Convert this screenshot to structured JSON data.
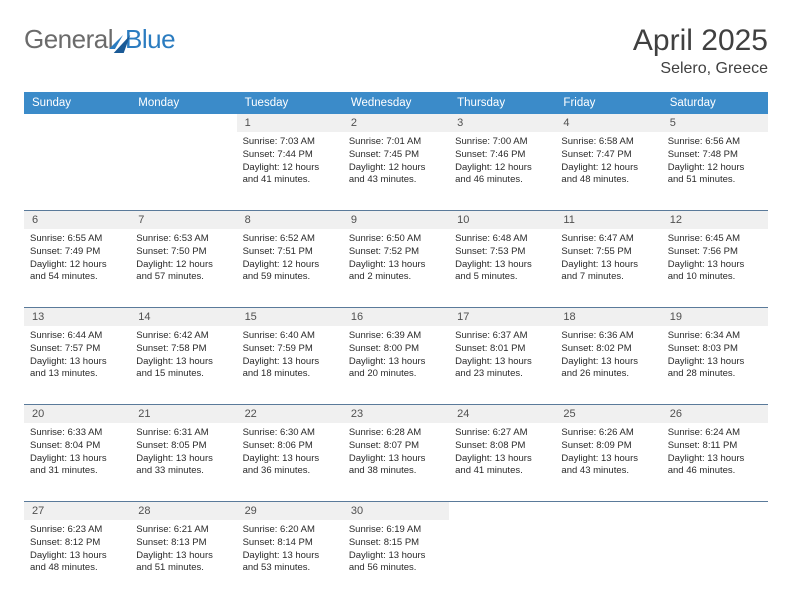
{
  "logo": {
    "part1": "General",
    "part2": "Blue"
  },
  "title": "April 2025",
  "location": "Selero, Greece",
  "dow": [
    "Sunday",
    "Monday",
    "Tuesday",
    "Wednesday",
    "Thursday",
    "Friday",
    "Saturday"
  ],
  "colors": {
    "header_bg": "#3b8bc9",
    "daynum_bg": "#f0f0f0",
    "border": "#5a7a9a",
    "text": "#2a2a2a",
    "title_text": "#404040"
  },
  "weeks": [
    {
      "nums": [
        "",
        "",
        "1",
        "2",
        "3",
        "4",
        "5"
      ],
      "cells": [
        null,
        null,
        {
          "sr": "Sunrise: 7:03 AM",
          "ss": "Sunset: 7:44 PM",
          "dl": "Daylight: 12 hours and 41 minutes."
        },
        {
          "sr": "Sunrise: 7:01 AM",
          "ss": "Sunset: 7:45 PM",
          "dl": "Daylight: 12 hours and 43 minutes."
        },
        {
          "sr": "Sunrise: 7:00 AM",
          "ss": "Sunset: 7:46 PM",
          "dl": "Daylight: 12 hours and 46 minutes."
        },
        {
          "sr": "Sunrise: 6:58 AM",
          "ss": "Sunset: 7:47 PM",
          "dl": "Daylight: 12 hours and 48 minutes."
        },
        {
          "sr": "Sunrise: 6:56 AM",
          "ss": "Sunset: 7:48 PM",
          "dl": "Daylight: 12 hours and 51 minutes."
        }
      ]
    },
    {
      "nums": [
        "6",
        "7",
        "8",
        "9",
        "10",
        "11",
        "12"
      ],
      "cells": [
        {
          "sr": "Sunrise: 6:55 AM",
          "ss": "Sunset: 7:49 PM",
          "dl": "Daylight: 12 hours and 54 minutes."
        },
        {
          "sr": "Sunrise: 6:53 AM",
          "ss": "Sunset: 7:50 PM",
          "dl": "Daylight: 12 hours and 57 minutes."
        },
        {
          "sr": "Sunrise: 6:52 AM",
          "ss": "Sunset: 7:51 PM",
          "dl": "Daylight: 12 hours and 59 minutes."
        },
        {
          "sr": "Sunrise: 6:50 AM",
          "ss": "Sunset: 7:52 PM",
          "dl": "Daylight: 13 hours and 2 minutes."
        },
        {
          "sr": "Sunrise: 6:48 AM",
          "ss": "Sunset: 7:53 PM",
          "dl": "Daylight: 13 hours and 5 minutes."
        },
        {
          "sr": "Sunrise: 6:47 AM",
          "ss": "Sunset: 7:55 PM",
          "dl": "Daylight: 13 hours and 7 minutes."
        },
        {
          "sr": "Sunrise: 6:45 AM",
          "ss": "Sunset: 7:56 PM",
          "dl": "Daylight: 13 hours and 10 minutes."
        }
      ]
    },
    {
      "nums": [
        "13",
        "14",
        "15",
        "16",
        "17",
        "18",
        "19"
      ],
      "cells": [
        {
          "sr": "Sunrise: 6:44 AM",
          "ss": "Sunset: 7:57 PM",
          "dl": "Daylight: 13 hours and 13 minutes."
        },
        {
          "sr": "Sunrise: 6:42 AM",
          "ss": "Sunset: 7:58 PM",
          "dl": "Daylight: 13 hours and 15 minutes."
        },
        {
          "sr": "Sunrise: 6:40 AM",
          "ss": "Sunset: 7:59 PM",
          "dl": "Daylight: 13 hours and 18 minutes."
        },
        {
          "sr": "Sunrise: 6:39 AM",
          "ss": "Sunset: 8:00 PM",
          "dl": "Daylight: 13 hours and 20 minutes."
        },
        {
          "sr": "Sunrise: 6:37 AM",
          "ss": "Sunset: 8:01 PM",
          "dl": "Daylight: 13 hours and 23 minutes."
        },
        {
          "sr": "Sunrise: 6:36 AM",
          "ss": "Sunset: 8:02 PM",
          "dl": "Daylight: 13 hours and 26 minutes."
        },
        {
          "sr": "Sunrise: 6:34 AM",
          "ss": "Sunset: 8:03 PM",
          "dl": "Daylight: 13 hours and 28 minutes."
        }
      ]
    },
    {
      "nums": [
        "20",
        "21",
        "22",
        "23",
        "24",
        "25",
        "26"
      ],
      "cells": [
        {
          "sr": "Sunrise: 6:33 AM",
          "ss": "Sunset: 8:04 PM",
          "dl": "Daylight: 13 hours and 31 minutes."
        },
        {
          "sr": "Sunrise: 6:31 AM",
          "ss": "Sunset: 8:05 PM",
          "dl": "Daylight: 13 hours and 33 minutes."
        },
        {
          "sr": "Sunrise: 6:30 AM",
          "ss": "Sunset: 8:06 PM",
          "dl": "Daylight: 13 hours and 36 minutes."
        },
        {
          "sr": "Sunrise: 6:28 AM",
          "ss": "Sunset: 8:07 PM",
          "dl": "Daylight: 13 hours and 38 minutes."
        },
        {
          "sr": "Sunrise: 6:27 AM",
          "ss": "Sunset: 8:08 PM",
          "dl": "Daylight: 13 hours and 41 minutes."
        },
        {
          "sr": "Sunrise: 6:26 AM",
          "ss": "Sunset: 8:09 PM",
          "dl": "Daylight: 13 hours and 43 minutes."
        },
        {
          "sr": "Sunrise: 6:24 AM",
          "ss": "Sunset: 8:11 PM",
          "dl": "Daylight: 13 hours and 46 minutes."
        }
      ]
    },
    {
      "nums": [
        "27",
        "28",
        "29",
        "30",
        "",
        "",
        ""
      ],
      "cells": [
        {
          "sr": "Sunrise: 6:23 AM",
          "ss": "Sunset: 8:12 PM",
          "dl": "Daylight: 13 hours and 48 minutes."
        },
        {
          "sr": "Sunrise: 6:21 AM",
          "ss": "Sunset: 8:13 PM",
          "dl": "Daylight: 13 hours and 51 minutes."
        },
        {
          "sr": "Sunrise: 6:20 AM",
          "ss": "Sunset: 8:14 PM",
          "dl": "Daylight: 13 hours and 53 minutes."
        },
        {
          "sr": "Sunrise: 6:19 AM",
          "ss": "Sunset: 8:15 PM",
          "dl": "Daylight: 13 hours and 56 minutes."
        },
        null,
        null,
        null
      ]
    }
  ]
}
